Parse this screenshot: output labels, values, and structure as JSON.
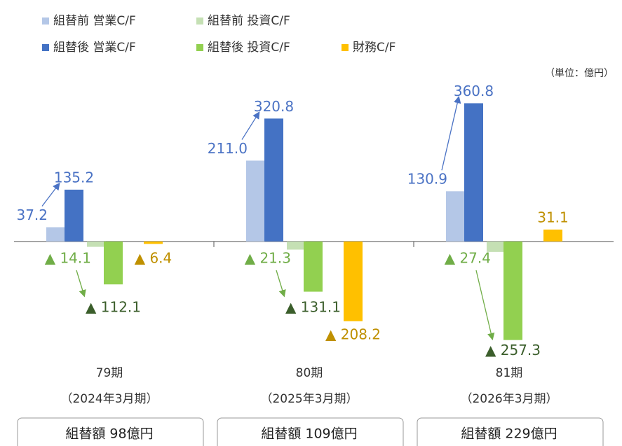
{
  "chart_data": {
    "type": "bar",
    "unit": "（単位：億円）",
    "categories": [
      "79期",
      "80期",
      "81期"
    ],
    "category_periods": [
      "（2024年3月期）",
      "（2025年3月期）",
      "（2026年3月期）"
    ],
    "reclass_amounts": [
      "組替額 98億円",
      "組替額 109億円",
      "組替額 229億円"
    ],
    "ylim": [
      -300,
      400
    ],
    "series": [
      {
        "name": "組替前 営業C/F",
        "color": "#b4c7e7",
        "label_color": "#4a72c4",
        "values": [
          37.2,
          211.0,
          130.9
        ],
        "value_labels": [
          "37.2",
          "211.0",
          "130.9"
        ]
      },
      {
        "name": "組替前 投資C/F",
        "color": "#c5e0b4",
        "label_color": "#70ad47",
        "values": [
          -14.1,
          -21.3,
          -27.4
        ],
        "value_labels": [
          "▲ 14.1",
          "▲ 21.3",
          "▲ 27.4"
        ]
      },
      {
        "name": "組替後 営業C/F",
        "color": "#4472c4",
        "label_color": "#4a72c4",
        "values": [
          135.2,
          320.8,
          360.8
        ],
        "value_labels": [
          "135.2",
          "320.8",
          "360.8"
        ]
      },
      {
        "name": "組替後 投資C/F",
        "color": "#92d050",
        "label_color": "#3b5e2b",
        "values": [
          -112.1,
          -131.1,
          -257.3
        ],
        "value_labels": [
          "▲ 112.1",
          "▲ 131.1",
          "▲ 257.3"
        ]
      },
      {
        "name": "財務C/F",
        "color": "#ffc000",
        "label_color": "#bf9000",
        "values": [
          -6.4,
          -208.2,
          31.1
        ],
        "value_labels": [
          "▲ 6.4",
          "▲ 208.2",
          "31.1"
        ]
      }
    ]
  }
}
